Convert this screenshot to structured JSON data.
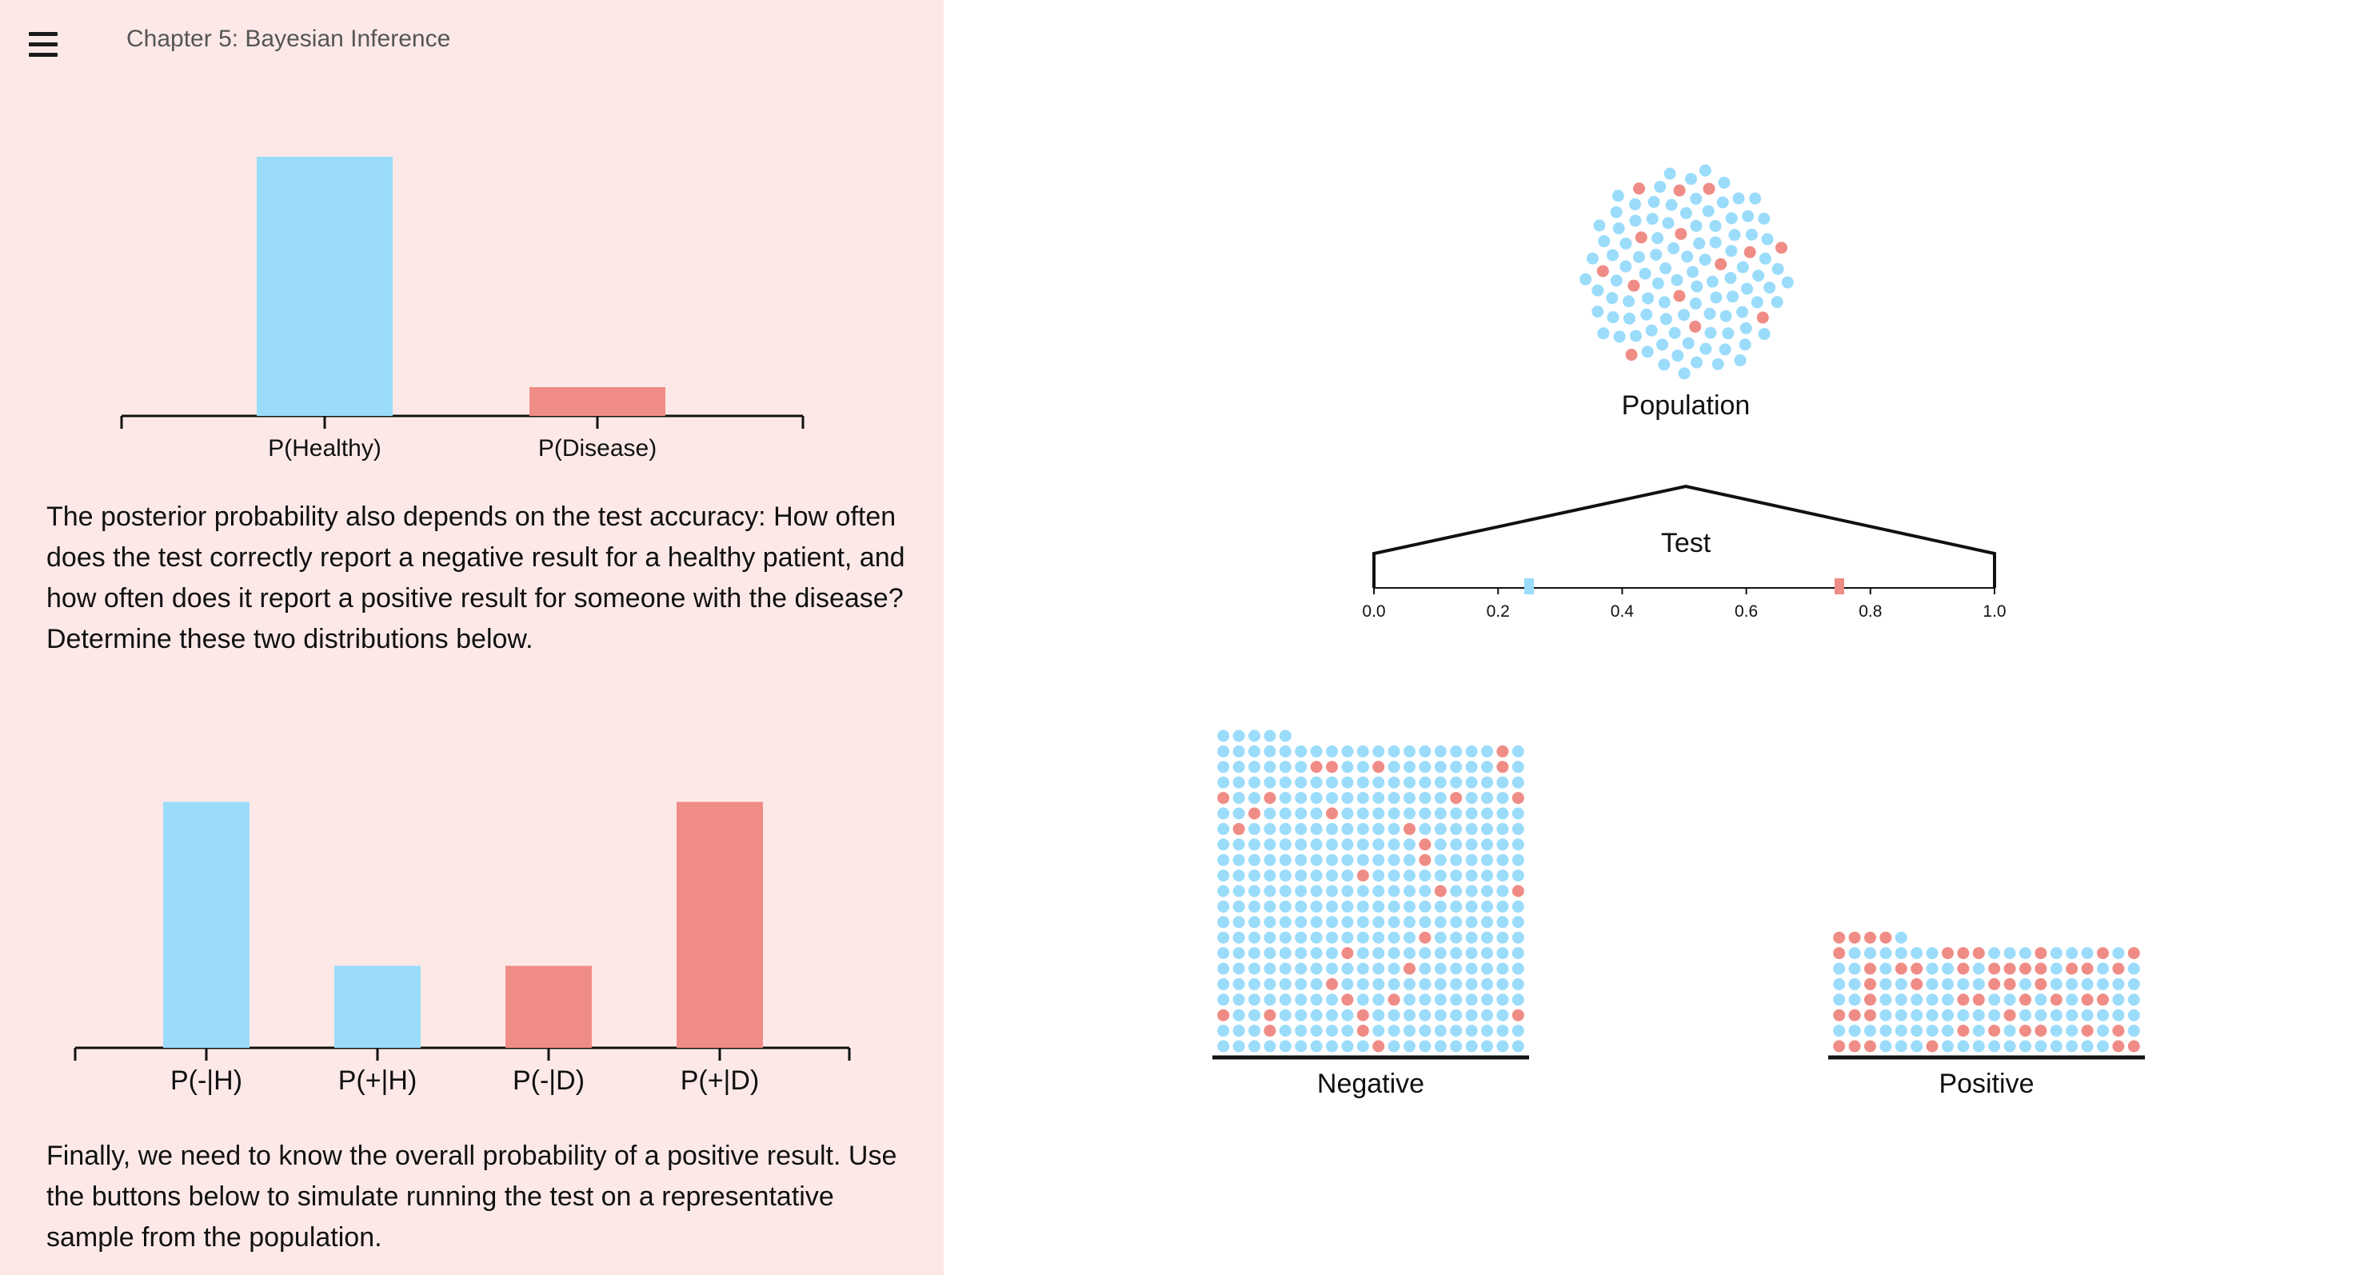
{
  "header": {
    "menu_icon": "hamburger-menu-icon",
    "chapter_title": "Chapter 5: Bayesian Inference"
  },
  "text": {
    "para_1": "The posterior probability also depends on the test accuracy: How often does the test correctly report a negative result for a healthy patient, and how often does it report a positive result for someone with the disease? Determine these two distributions below.",
    "para_2": "Finally, we need to know the overall probability of a positive result. Use the buttons below to simulate running the test on a representative sample from the population."
  },
  "colors": {
    "healthy": "#9bdcfb",
    "disease": "#f08c86",
    "panel_bg": "#fce9e7",
    "axis": "#111111"
  },
  "chart_data": [
    {
      "type": "bar",
      "categories": [
        "P(Healthy)",
        "P(Disease)"
      ],
      "values": [
        0.9,
        0.1
      ],
      "colors": [
        "#9bdcfb",
        "#f08c86"
      ],
      "ylim": [
        0,
        1
      ]
    },
    {
      "type": "bar",
      "categories": [
        "P(-|H)",
        "P(+|H)",
        "P(-|D)",
        "P(+|D)"
      ],
      "values": [
        0.75,
        0.25,
        0.25,
        0.75
      ],
      "colors": [
        "#9bdcfb",
        "#9bdcfb",
        "#f08c86",
        "#f08c86"
      ],
      "ylim": [
        0,
        1
      ]
    }
  ],
  "simulation": {
    "population_label": "Population",
    "population": {
      "healthy": 100,
      "disease": 14
    },
    "test_label": "Test",
    "test_axis_ticks": [
      "0.0",
      "0.2",
      "0.4",
      "0.6",
      "0.8",
      "1.0"
    ],
    "test_markers": [
      {
        "value": 0.25,
        "color": "#9bdcfb"
      },
      {
        "value": 0.75,
        "color": "#f08c86"
      }
    ],
    "negative": {
      "label": "Negative",
      "healthy": 374,
      "disease": 31
    },
    "positive": {
      "label": "Positive",
      "healthy": 95,
      "disease": 50
    }
  }
}
